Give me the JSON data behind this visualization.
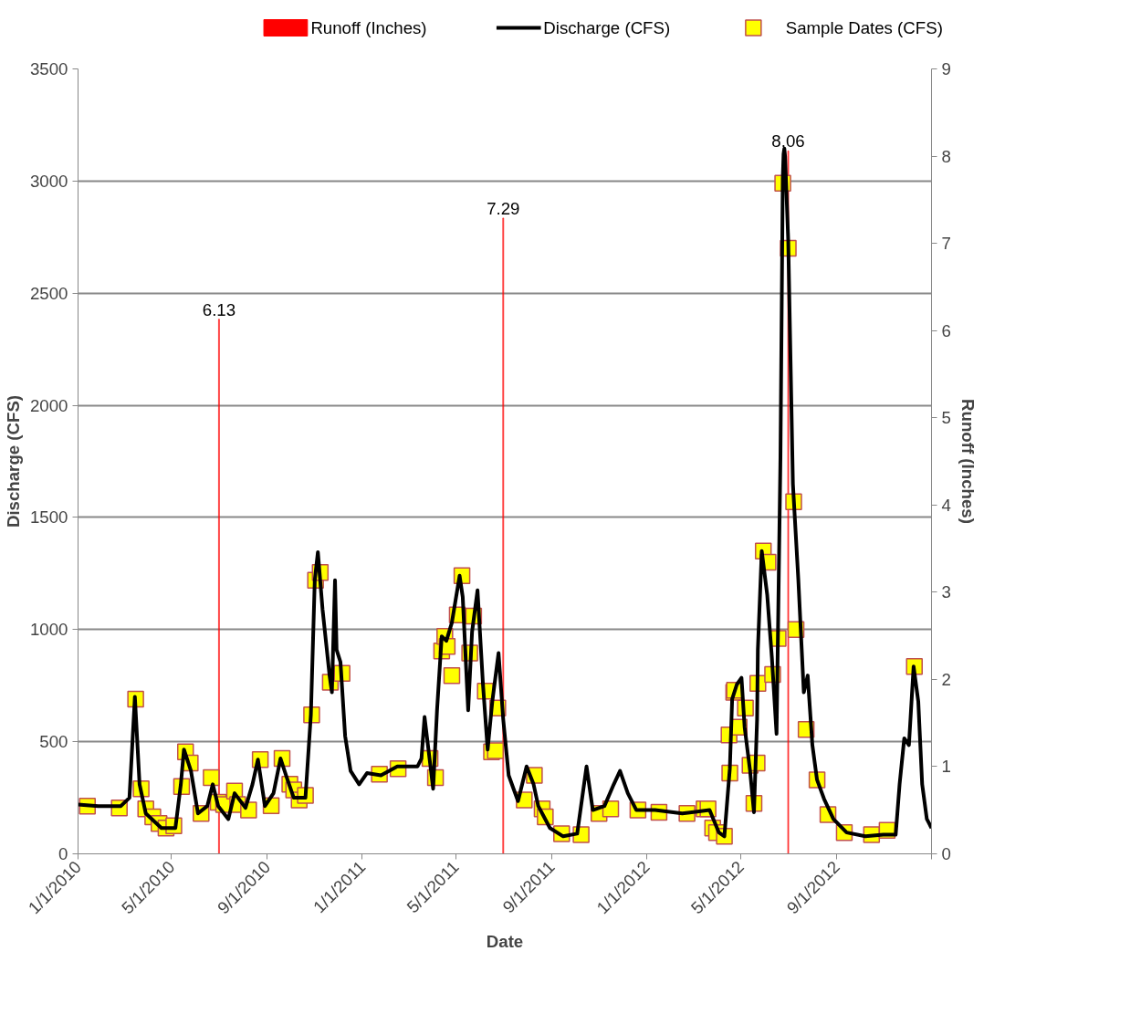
{
  "chart_data": {
    "type": "line",
    "xlabel": "Date",
    "ylabel": "Discharge (CFS)",
    "y2label": "Runoff (Inches)",
    "xlim": [
      "2010-01-01",
      "2013-01-01"
    ],
    "xticks": [
      {
        "value": "2010-01-01",
        "label": "1/1/2010"
      },
      {
        "value": "2010-05-01",
        "label": "5/1/2010"
      },
      {
        "value": "2010-09-01",
        "label": "9/1/2010"
      },
      {
        "value": "2011-01-01",
        "label": "1/1/2011"
      },
      {
        "value": "2011-05-01",
        "label": "5/1/2011"
      },
      {
        "value": "2011-09-01",
        "label": "9/1/2011"
      },
      {
        "value": "2012-01-01",
        "label": "1/1/2012"
      },
      {
        "value": "2012-05-01",
        "label": "5/1/2012"
      },
      {
        "value": "2012-09-01",
        "label": "9/1/2012"
      },
      {
        "value": "2013-01-01",
        "label": null
      }
    ],
    "ylim": [
      0,
      3500
    ],
    "yticks": [
      0,
      500,
      1000,
      1500,
      2000,
      2500,
      3000,
      3500
    ],
    "y2lim": [
      0,
      9
    ],
    "y2ticks": [
      0,
      1,
      2,
      3,
      4,
      5,
      6,
      7,
      8,
      9
    ],
    "grid": "y",
    "legend": "top",
    "series": [
      {
        "name": "Runoff (Inches)",
        "type": "bar",
        "axis": "y2",
        "color": "#ff0000",
        "x": [
          "2010-07-01",
          "2011-07-01",
          "2012-07-01"
        ],
        "values": [
          6.13,
          7.29,
          8.06
        ],
        "value_labels": [
          "6.13",
          "7.29",
          "8.06"
        ]
      },
      {
        "name": "Discharge (CFS)",
        "color": "#000000",
        "line_style": "solid",
        "marker": "none",
        "x": [
          "2010-01-01",
          "2010-01-27",
          "2010-02-25",
          "2010-03-08",
          "2010-03-15",
          "2010-03-21",
          "2010-03-29",
          "2010-04-18",
          "2010-05-06",
          "2010-05-13",
          "2010-05-17",
          "2010-05-26",
          "2010-06-04",
          "2010-06-16",
          "2010-06-23",
          "2010-06-30",
          "2010-07-13",
          "2010-07-21",
          "2010-08-04",
          "2010-08-13",
          "2010-08-20",
          "2010-08-29",
          "2010-09-09",
          "2010-09-18",
          "2010-09-27",
          "2010-10-05",
          "2010-10-20",
          "2010-10-27",
          "2010-11-01",
          "2010-11-05",
          "2010-11-11",
          "2010-11-20",
          "2010-11-23",
          "2010-11-27",
          "2010-11-29",
          "2010-12-04",
          "2010-12-10",
          "2010-12-17",
          "2010-12-28",
          "2011-01-07",
          "2011-01-25",
          "2011-02-15",
          "2011-03-13",
          "2011-03-18",
          "2011-03-22",
          "2011-03-27",
          "2011-04-02",
          "2011-04-07",
          "2011-04-13",
          "2011-04-19",
          "2011-04-26",
          "2011-05-06",
          "2011-05-10",
          "2011-05-17",
          "2011-05-22",
          "2011-05-29",
          "2011-06-05",
          "2011-06-11",
          "2011-06-17",
          "2011-06-25",
          "2011-07-01",
          "2011-07-08",
          "2011-07-20",
          "2011-07-31",
          "2011-08-09",
          "2011-08-15",
          "2011-08-30",
          "2011-09-16",
          "2011-10-04",
          "2011-10-16",
          "2011-10-24",
          "2011-11-08",
          "2011-11-20",
          "2011-11-28",
          "2011-12-08",
          "2011-12-19",
          "2012-01-12",
          "2012-02-16",
          "2012-03-22",
          "2012-04-03",
          "2012-04-10",
          "2012-04-17",
          "2012-04-20",
          "2012-04-26",
          "2012-05-02",
          "2012-05-06",
          "2012-05-13",
          "2012-05-18",
          "2012-05-22",
          "2012-05-23",
          "2012-05-28",
          "2012-06-04",
          "2012-06-10",
          "2012-06-16",
          "2012-06-21",
          "2012-06-24",
          "2012-06-25",
          "2012-06-26",
          "2012-06-27",
          "2012-07-01",
          "2012-07-07",
          "2012-07-14",
          "2012-07-21",
          "2012-07-26",
          "2012-08-01",
          "2012-08-07",
          "2012-08-16",
          "2012-08-28",
          "2012-09-14",
          "2012-10-08",
          "2012-10-31",
          "2012-11-16",
          "2012-11-21",
          "2012-11-27",
          "2012-12-03",
          "2012-12-09",
          "2012-12-15",
          "2012-12-20",
          "2012-12-26",
          "2013-01-01"
        ],
        "values": [
          220,
          213,
          213,
          250,
          700,
          310,
          180,
          115,
          115,
          310,
          465,
          370,
          180,
          213,
          310,
          213,
          155,
          270,
          205,
          310,
          420,
          213,
          270,
          425,
          330,
          250,
          250,
          620,
          1220,
          1345,
          1090,
          795,
          720,
          1220,
          910,
          855,
          525,
          370,
          310,
          360,
          350,
          390,
          390,
          425,
          610,
          465,
          290,
          640,
          970,
          950,
          1030,
          1240,
          1145,
          640,
          990,
          1175,
          755,
          465,
          680,
          895,
          600,
          350,
          235,
          390,
          310,
          213,
          115,
          78,
          90,
          390,
          195,
          213,
          310,
          370,
          270,
          195,
          195,
          180,
          195,
          95,
          78,
          380,
          690,
          755,
          785,
          565,
          370,
          185,
          600,
          910,
          1350,
          1155,
          875,
          535,
          1765,
          3010,
          3120,
          3145,
          3110,
          2735,
          1650,
          1220,
          720,
          795,
          485,
          330,
          245,
          155,
          95,
          78,
          85,
          85,
          310,
          515,
          485,
          835,
          680,
          310,
          155,
          115
        ]
      },
      {
        "name": "Sample Dates (CFS)",
        "type": "scatter",
        "color": "#ffff00",
        "marker": "square",
        "x": [
          "2010-01-13",
          "2010-02-23",
          "2010-03-16",
          "2010-03-23",
          "2010-03-29",
          "2010-04-07",
          "2010-04-15",
          "2010-04-24",
          "2010-05-04",
          "2010-05-14",
          "2010-05-19",
          "2010-05-25",
          "2010-06-08",
          "2010-06-21",
          "2010-06-30",
          "2010-07-07",
          "2010-07-21",
          "2010-07-25",
          "2010-08-08",
          "2010-08-23",
          "2010-09-06",
          "2010-09-20",
          "2010-09-30",
          "2010-10-05",
          "2010-10-12",
          "2010-10-20",
          "2010-10-28",
          "2010-11-02",
          "2010-11-08",
          "2010-11-21",
          "2010-12-06",
          "2011-01-23",
          "2011-02-16",
          "2011-03-29",
          "2011-04-05",
          "2011-04-13",
          "2011-04-17",
          "2011-04-20",
          "2011-04-26",
          "2011-05-03",
          "2011-05-09",
          "2011-05-19",
          "2011-05-24",
          "2011-06-08",
          "2011-06-16",
          "2011-06-21",
          "2011-06-24",
          "2011-07-28",
          "2011-08-10",
          "2011-08-20",
          "2011-08-24",
          "2011-09-14",
          "2011-10-09",
          "2011-11-01",
          "2011-11-16",
          "2011-12-21",
          "2012-01-17",
          "2012-02-22",
          "2012-03-15",
          "2012-03-20",
          "2012-03-26",
          "2012-03-31",
          "2012-04-10",
          "2012-04-16",
          "2012-04-17",
          "2012-04-22",
          "2012-04-23",
          "2012-04-29",
          "2012-05-07",
          "2012-05-13",
          "2012-05-18",
          "2012-05-22",
          "2012-05-23",
          "2012-05-30",
          "2012-06-05",
          "2012-06-11",
          "2012-06-18",
          "2012-06-24",
          "2012-07-01",
          "2012-07-08",
          "2012-07-11",
          "2012-07-24",
          "2012-08-07",
          "2012-08-21",
          "2012-09-11",
          "2012-10-16",
          "2012-11-05",
          "2012-12-10"
        ],
        "values": [
          213,
          205,
          690,
          290,
          200,
          165,
          135,
          115,
          125,
          300,
          455,
          405,
          180,
          340,
          230,
          220,
          280,
          220,
          195,
          420,
          215,
          425,
          310,
          285,
          240,
          260,
          620,
          1220,
          1255,
          765,
          805,
          355,
          380,
          425,
          340,
          905,
          970,
          925,
          795,
          1065,
          1240,
          895,
          1060,
          725,
          455,
          460,
          650,
          240,
          350,
          200,
          165,
          90,
          85,
          180,
          200,
          195,
          185,
          180,
          200,
          200,
          115,
          95,
          78,
          530,
          360,
          720,
          730,
          565,
          650,
          395,
          225,
          405,
          760,
          1350,
          1300,
          800,
          960,
          2990,
          2700,
          1570,
          1000,
          555,
          330,
          175,
          95,
          85,
          105,
          835
        ]
      }
    ]
  }
}
